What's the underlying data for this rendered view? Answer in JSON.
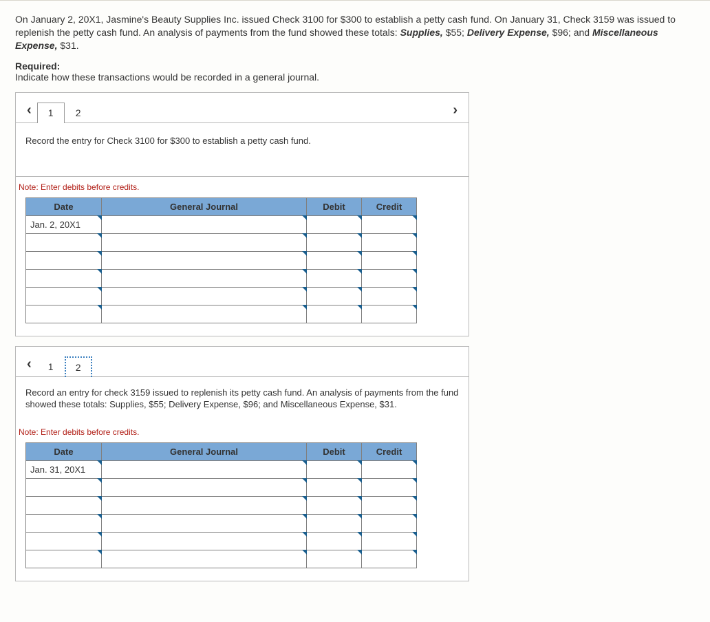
{
  "intro": {
    "p1a": "On January 2, 20X1, Jasmine's Beauty Supplies Inc. issued Check 3100 for $300 to establish a petty cash fund. On January 31, Check 3159 was issued to replenish the petty cash fund. An analysis of payments from the fund showed these totals: ",
    "supplies_label": "Supplies,",
    "supplies_val": " $55; ",
    "delivery_label": "Delivery Expense,",
    "delivery_val": " $96; and ",
    "misc_label": "Miscellaneous Expense,",
    "misc_val": " $31."
  },
  "required_label": "Required:",
  "required_text": "Indicate how these transactions would be recorded in a general journal.",
  "sections": {
    "s1": {
      "tab1": "1",
      "tab2": "2",
      "instruction": "Record the entry for Check 3100 for $300 to establish a petty cash fund.",
      "date_value": "Jan. 2, 20X1"
    },
    "s2": {
      "tab1": "1",
      "tab2": "2",
      "instruction": "Record an entry for check 3159 issued to replenish its petty cash fund. An analysis of payments from the fund showed these totals: Supplies, $55; Delivery Expense, $96; and Miscellaneous Expense, $31.",
      "date_value": "Jan. 31, 20X1"
    }
  },
  "table": {
    "note": "Note: Enter debits before credits.",
    "headers": {
      "date": "Date",
      "gj": "General Journal",
      "debit": "Debit",
      "credit": "Credit"
    },
    "col_widths": {
      "date": 110,
      "gj": 298,
      "debit": 80,
      "credit": 80
    },
    "row_count": 6,
    "header_bg": "#7aa8d6",
    "border_color": "#808080",
    "tick_color": "#1b5f8e"
  },
  "colors": {
    "page_bg": "#fdfdfb",
    "body_bg": "#f4f2ed",
    "note_color": "#b22018",
    "section_border": "#b9b9b9"
  }
}
